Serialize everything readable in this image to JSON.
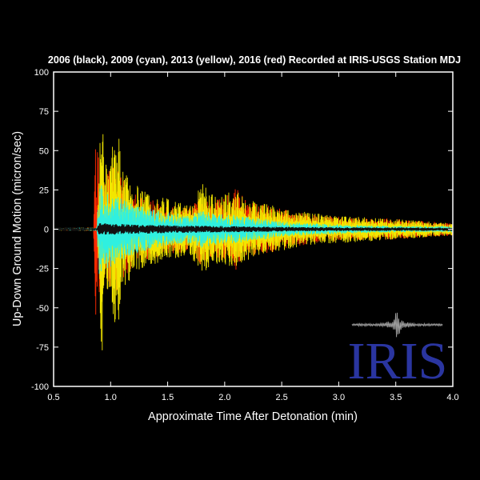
{
  "chart_data": {
    "type": "line",
    "title": "2006 (black), 2009 (cyan), 2013 (yellow), 2016 (red) Recorded at IRIS-USGS Station MDJ",
    "xlabel": "Approximate Time After Detonation (min)",
    "ylabel": "Up-Down Ground Motion (micron/sec)",
    "xlim": [
      0.5,
      4.0
    ],
    "ylim": [
      -100,
      100
    ],
    "xticks": [
      "0.5",
      "1.0",
      "1.5",
      "2.0",
      "2.5",
      "3.0",
      "3.5",
      "4.0"
    ],
    "yticks": [
      "-100",
      "-75",
      "-50",
      "-25",
      "0",
      "25",
      "50",
      "75",
      "100"
    ],
    "x_tick_values": [
      0.5,
      1.0,
      1.5,
      2.0,
      2.5,
      3.0,
      3.5,
      4.0
    ],
    "y_tick_values": [
      -100,
      -75,
      -50,
      -25,
      0,
      25,
      50,
      75,
      100
    ],
    "grid": false,
    "series": [
      {
        "name": "2016",
        "color": "#ff2a00",
        "envelope": [
          [
            0.5,
            0.8
          ],
          [
            0.85,
            1
          ],
          [
            0.87,
            58
          ],
          [
            0.9,
            45
          ],
          [
            0.95,
            34
          ],
          [
            1.0,
            40
          ],
          [
            1.05,
            42
          ],
          [
            1.1,
            32
          ],
          [
            1.2,
            24
          ],
          [
            1.3,
            20
          ],
          [
            1.4,
            18
          ],
          [
            1.5,
            16
          ],
          [
            1.6,
            15
          ],
          [
            1.7,
            14
          ],
          [
            1.8,
            24
          ],
          [
            1.9,
            18
          ],
          [
            2.0,
            20
          ],
          [
            2.1,
            26
          ],
          [
            2.2,
            18
          ],
          [
            2.3,
            16
          ],
          [
            2.4,
            15
          ],
          [
            2.5,
            13
          ],
          [
            2.6,
            11
          ],
          [
            2.7,
            10
          ],
          [
            2.8,
            9
          ],
          [
            3.0,
            8
          ],
          [
            3.2,
            7
          ],
          [
            3.4,
            7
          ],
          [
            3.6,
            6
          ],
          [
            3.8,
            5
          ],
          [
            4.0,
            4
          ]
        ]
      },
      {
        "name": "2013",
        "color": "#f2e600",
        "envelope": [
          [
            0.5,
            0.8
          ],
          [
            0.88,
            1
          ],
          [
            0.9,
            46
          ],
          [
            0.92,
            88
          ],
          [
            0.95,
            40
          ],
          [
            1.0,
            48
          ],
          [
            1.05,
            68
          ],
          [
            1.08,
            58
          ],
          [
            1.1,
            38
          ],
          [
            1.2,
            30
          ],
          [
            1.3,
            24
          ],
          [
            1.4,
            22
          ],
          [
            1.5,
            20
          ],
          [
            1.6,
            18
          ],
          [
            1.7,
            17
          ],
          [
            1.8,
            30
          ],
          [
            1.9,
            22
          ],
          [
            2.0,
            24
          ],
          [
            2.1,
            24
          ],
          [
            2.2,
            20
          ],
          [
            2.3,
            17
          ],
          [
            2.4,
            16
          ],
          [
            2.5,
            14
          ],
          [
            2.6,
            12
          ],
          [
            2.7,
            11
          ],
          [
            2.8,
            10
          ],
          [
            3.0,
            9
          ],
          [
            3.2,
            8
          ],
          [
            3.4,
            7
          ],
          [
            3.6,
            6
          ],
          [
            3.8,
            5
          ],
          [
            4.0,
            4
          ]
        ]
      },
      {
        "name": "2009",
        "color": "#2ff0e0",
        "envelope": [
          [
            0.5,
            0.8
          ],
          [
            0.88,
            1
          ],
          [
            0.9,
            30
          ],
          [
            0.95,
            26
          ],
          [
            1.0,
            24
          ],
          [
            1.05,
            22
          ],
          [
            1.1,
            20
          ],
          [
            1.2,
            16
          ],
          [
            1.3,
            14
          ],
          [
            1.4,
            12
          ],
          [
            1.5,
            11
          ],
          [
            1.6,
            10
          ],
          [
            1.7,
            9
          ],
          [
            1.8,
            12
          ],
          [
            1.9,
            10
          ],
          [
            2.0,
            10
          ],
          [
            2.1,
            9
          ],
          [
            2.2,
            8
          ],
          [
            2.3,
            7
          ],
          [
            2.4,
            6
          ],
          [
            2.5,
            5
          ],
          [
            2.7,
            4
          ],
          [
            3.0,
            3
          ],
          [
            3.5,
            2
          ],
          [
            4.0,
            2
          ]
        ]
      },
      {
        "name": "2006",
        "color": "#000000",
        "envelope": [
          [
            0.5,
            0.3
          ],
          [
            0.88,
            0.5
          ],
          [
            0.9,
            4
          ],
          [
            1.0,
            3.5
          ],
          [
            1.2,
            3
          ],
          [
            1.5,
            2.5
          ],
          [
            2.0,
            2
          ],
          [
            2.5,
            1.5
          ],
          [
            3.0,
            1.2
          ],
          [
            4.0,
            1
          ]
        ]
      }
    ],
    "logo": {
      "text": "IRIS",
      "color": "#2a35a0",
      "seismogram_color": "#9a9a9a"
    }
  }
}
